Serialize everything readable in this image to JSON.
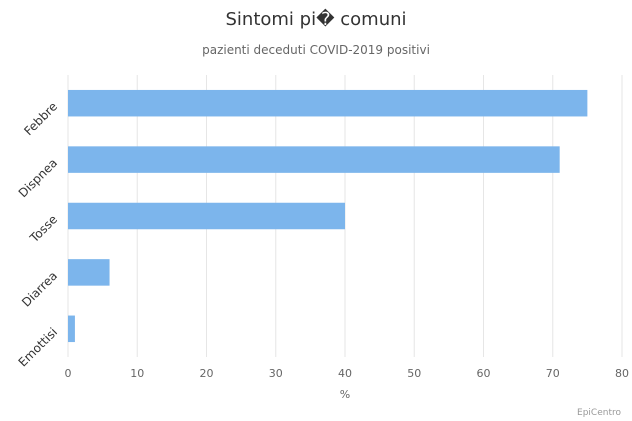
{
  "chart_data": {
    "type": "bar",
    "orientation": "horizontal",
    "title": "Sintomi pi� comuni",
    "subtitle": "pazienti deceduti COVID-2019 positivi",
    "categories": [
      "Febbre",
      "Dispnea",
      "Tosse",
      "Diarrea",
      "Emottisi"
    ],
    "values": [
      75,
      71,
      40,
      6,
      1
    ],
    "xlabel": "%",
    "ylabel": "",
    "xlim": [
      0,
      80
    ],
    "xticks": [
      0,
      10,
      20,
      30,
      40,
      50,
      60,
      70,
      80
    ],
    "grid": true,
    "legend": "none",
    "bar_color": "#7cb5ec",
    "credits": "EpiCentro"
  }
}
